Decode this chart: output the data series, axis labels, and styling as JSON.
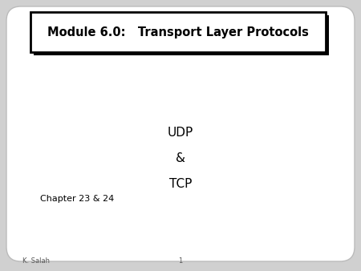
{
  "bg_color": "#d0d0d0",
  "slide_bg": "#ffffff",
  "title_text": "Module 6.0:   Transport Layer Protocols",
  "title_box_color": "#ffffff",
  "title_box_edge": "#000000",
  "title_shadow_color": "#000000",
  "body_lines": [
    "UDP",
    "&",
    "TCP"
  ],
  "chapter_text": "Chapter 23 & 24",
  "footer_left": "K. Salah",
  "footer_center": "1",
  "title_fontsize": 10.5,
  "body_fontsize": 11,
  "chapter_fontsize": 8,
  "footer_fontsize": 6
}
